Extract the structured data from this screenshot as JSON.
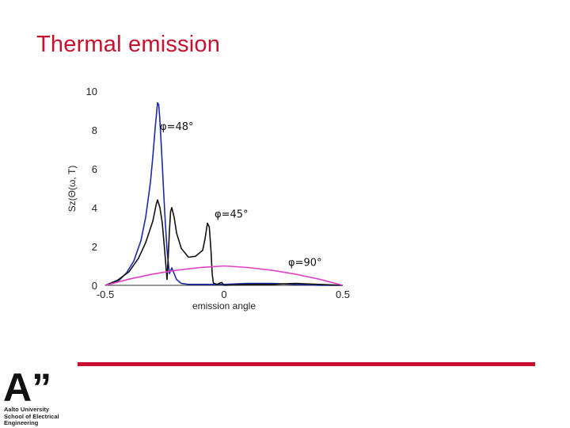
{
  "slide": {
    "title": "Thermal emission"
  },
  "branding": {
    "logo_text_lines": [
      "Aalto University",
      "School of Electrical",
      "Engineering"
    ],
    "logo_glyph": "A”",
    "accent_color": "#c8102e"
  },
  "chart_data": {
    "type": "line",
    "title": "",
    "xlabel": "emission angle",
    "ylabel": "Sz(Θ(ω, T)",
    "xlim": [
      -0.5,
      0.5
    ],
    "ylim": [
      0,
      10
    ],
    "x_ticks": [
      -0.5,
      0,
      0.5
    ],
    "y_ticks": [
      0,
      2,
      4,
      6,
      8,
      10
    ],
    "grid": false,
    "annotations": [
      {
        "text": "φ=48°",
        "x": -0.27,
        "y": 8.0
      },
      {
        "text": "φ=45°",
        "x": -0.04,
        "y": 3.5
      },
      {
        "text": "φ=90°",
        "x": 0.27,
        "y": 1.0
      }
    ],
    "series": [
      {
        "color": "#1a2aa6",
        "points": [
          [
            -0.5,
            0.0
          ],
          [
            -0.47,
            0.1
          ],
          [
            -0.44,
            0.28
          ],
          [
            -0.41,
            0.65
          ],
          [
            -0.38,
            1.25
          ],
          [
            -0.35,
            2.3
          ],
          [
            -0.33,
            3.5
          ],
          [
            -0.31,
            5.3
          ],
          [
            -0.3,
            6.6
          ],
          [
            -0.29,
            8.1
          ],
          [
            -0.28,
            9.4
          ],
          [
            -0.275,
            9.3
          ],
          [
            -0.27,
            8.5
          ],
          [
            -0.26,
            6.2
          ],
          [
            -0.25,
            3.8
          ],
          [
            -0.24,
            1.8
          ],
          [
            -0.23,
            0.6
          ],
          [
            -0.22,
            0.9
          ],
          [
            -0.21,
            0.6
          ],
          [
            -0.2,
            0.3
          ],
          [
            -0.18,
            0.1
          ],
          [
            -0.15,
            0.05
          ],
          [
            -0.1,
            0.05
          ],
          [
            0.0,
            0.05
          ],
          [
            0.1,
            0.1
          ],
          [
            0.2,
            0.1
          ],
          [
            0.3,
            0.05
          ],
          [
            0.4,
            0.0
          ],
          [
            0.5,
            0.0
          ]
        ]
      },
      {
        "color": "#111111",
        "points": [
          [
            -0.5,
            0.0
          ],
          [
            -0.45,
            0.25
          ],
          [
            -0.4,
            0.7
          ],
          [
            -0.36,
            1.4
          ],
          [
            -0.33,
            2.2
          ],
          [
            -0.3,
            3.3
          ],
          [
            -0.285,
            4.2
          ],
          [
            -0.28,
            4.4
          ],
          [
            -0.27,
            4.0
          ],
          [
            -0.26,
            3.2
          ],
          [
            -0.25,
            1.8
          ],
          [
            -0.24,
            0.3
          ],
          [
            -0.235,
            1.5
          ],
          [
            -0.23,
            2.8
          ],
          [
            -0.225,
            3.8
          ],
          [
            -0.22,
            4.0
          ],
          [
            -0.21,
            3.5
          ],
          [
            -0.2,
            2.7
          ],
          [
            -0.18,
            1.9
          ],
          [
            -0.15,
            1.45
          ],
          [
            -0.12,
            1.5
          ],
          [
            -0.09,
            1.8
          ],
          [
            -0.08,
            2.4
          ],
          [
            -0.07,
            3.2
          ],
          [
            -0.062,
            3.0
          ],
          [
            -0.055,
            1.8
          ],
          [
            -0.05,
            0.6
          ],
          [
            -0.045,
            0.12
          ],
          [
            -0.03,
            0.05
          ],
          [
            -0.01,
            0.15
          ],
          [
            0.0,
            0.0
          ],
          [
            0.1,
            0.05
          ],
          [
            0.2,
            0.05
          ],
          [
            0.3,
            0.1
          ],
          [
            0.4,
            0.05
          ],
          [
            0.5,
            0.0
          ]
        ]
      },
      {
        "color": "#e040c8",
        "points": [
          [
            -0.5,
            0.0
          ],
          [
            -0.4,
            0.32
          ],
          [
            -0.3,
            0.58
          ],
          [
            -0.2,
            0.78
          ],
          [
            -0.1,
            0.92
          ],
          [
            0.0,
            1.0
          ],
          [
            0.1,
            0.92
          ],
          [
            0.2,
            0.78
          ],
          [
            0.3,
            0.58
          ],
          [
            0.4,
            0.32
          ],
          [
            0.5,
            0.0
          ]
        ]
      }
    ]
  }
}
